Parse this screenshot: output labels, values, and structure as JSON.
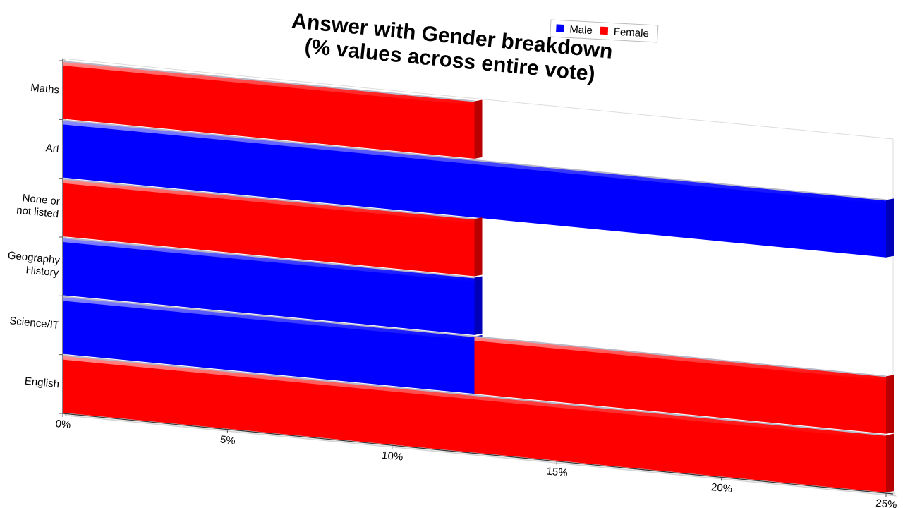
{
  "chart_data": {
    "type": "bar",
    "orientation": "horizontal",
    "stacked": true,
    "perspective_3d": true,
    "title": "Answer with Gender breakdown\n(% values across entire vote)",
    "categories": [
      "Maths",
      "Art",
      "None or\nnot listed",
      "Geography\nHistory",
      "Science/IT",
      "English"
    ],
    "series": [
      {
        "name": "Male",
        "color": "#0000ff",
        "values": [
          0,
          25,
          0,
          12.5,
          12.5,
          0
        ]
      },
      {
        "name": "Female",
        "color": "#ff0000",
        "values": [
          12.5,
          0,
          12.5,
          0,
          12.5,
          25
        ]
      }
    ],
    "xlim": [
      0,
      25
    ],
    "xticks": [
      "0%",
      "5%",
      "10%",
      "15%",
      "20%",
      "25%"
    ],
    "legend_position": "top-right",
    "grid": false
  }
}
